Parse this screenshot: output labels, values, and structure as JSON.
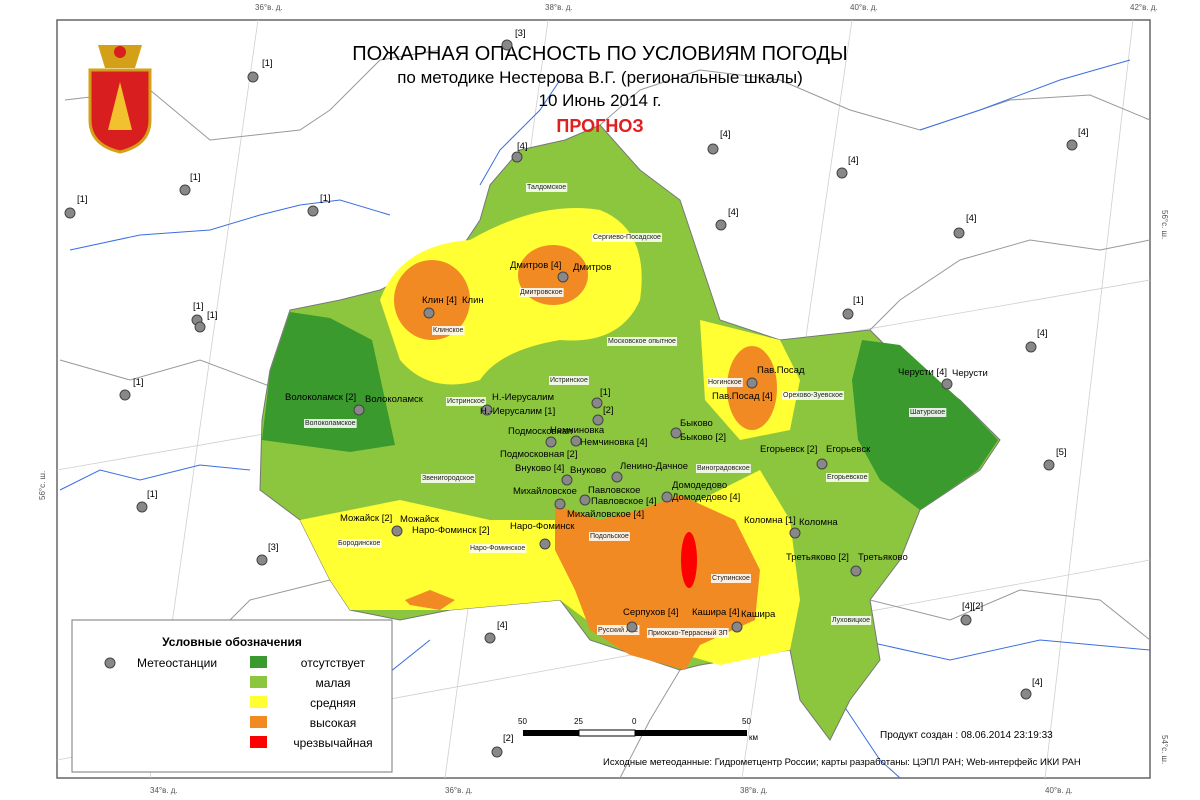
{
  "header": {
    "title": "ПОЖАРНАЯ ОПАСНОСТЬ ПО УСЛОВИЯМ ПОГОДЫ",
    "subtitle": "по методике Нестерова В.Г. (региональные шкалы)",
    "date": "10 Июнь 2014 г.",
    "forecast": "ПРОГНОЗ"
  },
  "legend": {
    "title": "Условные обозначения",
    "stations": "Метеостанции",
    "classes": [
      {
        "label": "отсутствует",
        "color": "#3a9a2e"
      },
      {
        "label": "малая",
        "color": "#8cc63f"
      },
      {
        "label": "средняя",
        "color": "#ffff33"
      },
      {
        "label": "высокая",
        "color": "#f28a24"
      },
      {
        "label": "чрезвычайная",
        "color": "#ff0000"
      }
    ]
  },
  "coords": {
    "top": [
      "36°в. д.",
      "38°в. д.",
      "40°в. д.",
      "42°в. д."
    ],
    "bottom": [
      "34°в. д.",
      "36°в. д.",
      "38°в. д.",
      "40°в. д."
    ],
    "right": [
      "56°с. ш.",
      "54°с. ш."
    ],
    "left": [
      "56°с. ш."
    ]
  },
  "scale": {
    "labels": [
      "50",
      "25",
      "0",
      "50",
      "км"
    ]
  },
  "footer": {
    "created": "Продукт создан : 08.06.2014 23:19:33",
    "sources": "Исходные метеоданные: Гидрометцентр России; карты разработаны: ЦЭПЛ РАН; Web-интерфейс ИКИ РАН"
  },
  "stations": [
    {
      "labels": [
        "[1]"
      ]
    },
    {
      "labels": [
        "[3]"
      ]
    },
    {
      "labels": [
        "[1]"
      ]
    },
    {
      "labels": [
        "[1]"
      ]
    },
    {
      "labels": [
        "[1]"
      ]
    },
    {
      "labels": [
        "[1]"
      ]
    },
    {
      "labels": [
        "[1]"
      ]
    },
    {
      "labels": [
        "[1]"
      ]
    },
    {
      "labels": [
        "[1]"
      ]
    },
    {
      "labels": [
        "[3]"
      ]
    },
    {
      "labels": [
        "[4]"
      ]
    },
    {
      "labels": [
        "[2]"
      ]
    },
    {
      "labels": [
        "[4]"
      ]
    },
    {
      "labels": [
        "[4]"
      ]
    },
    {
      "labels": [
        "[4]"
      ]
    },
    {
      "labels": [
        "[4]"
      ]
    },
    {
      "labels": [
        "[4]"
      ]
    },
    {
      "labels": [
        "[4]"
      ]
    },
    {
      "labels": [
        "[1]"
      ]
    },
    {
      "labels": [
        "[4]"
      ]
    },
    {
      "labels": [
        "[5]"
      ]
    },
    {
      "labels": [
        "[4][2]"
      ]
    },
    {
      "labels": [
        "[4]"
      ]
    },
    {
      "labels": [
        "Клин [4]",
        "Клин"
      ]
    },
    {
      "labels": [
        "Дмитров [4]",
        "Дмитров"
      ]
    },
    {
      "labels": [
        "Волоколамск [2]",
        "Волоколамск"
      ]
    },
    {
      "labels": [
        "Н.-Иерусалим",
        "Н.-Иерусалим [1]"
      ]
    },
    {
      "labels": [
        "[1]"
      ]
    },
    {
      "labels": [
        "[2]"
      ]
    },
    {
      "labels": [
        "Немчиновка",
        "Немчиновка [4]"
      ]
    },
    {
      "labels": [
        "Подмосковная",
        "Подмосковная [2]"
      ]
    },
    {
      "labels": [
        "Внуково [4]",
        "Внуково"
      ]
    },
    {
      "labels": [
        "Ленино-Дачное"
      ]
    },
    {
      "labels": [
        "Быково",
        "Быково [2]"
      ]
    },
    {
      "labels": [
        "Павловское",
        "Павловское [4]"
      ]
    },
    {
      "labels": [
        "Михайловское",
        "Михайловское [4]"
      ]
    },
    {
      "labels": [
        "Домодедово",
        "Домодедово [4]"
      ]
    },
    {
      "labels": [
        "Наро-Фоминск [2]",
        "Наро-Фоминск"
      ]
    },
    {
      "labels": [
        "Можайск [2]",
        "Можайск"
      ]
    },
    {
      "labels": [
        "Коломна [1]",
        "Коломна"
      ]
    },
    {
      "labels": [
        "Третьяково [2]",
        "Третьяково"
      ]
    },
    {
      "labels": [
        "Серпухов [4]"
      ]
    },
    {
      "labels": [
        "Кашира [4]",
        "Кашира"
      ]
    },
    {
      "labels": [
        "Егорьевск [2]",
        "Егорьевск"
      ]
    },
    {
      "labels": [
        "Пав.Посад",
        "Пав.Посад [4]"
      ]
    },
    {
      "labels": [
        "Черусти [4]",
        "Черусти"
      ]
    }
  ],
  "districts": [
    "Талдомское",
    "Сергиево-Посадское",
    "Дмитровское",
    "Клинское",
    "Московское опытное",
    "Истринское",
    "Истринское",
    "Волоколамское",
    "Звенигородское",
    "Бородинское",
    "Наро-Фоминское",
    "Подольское",
    "Ступинское",
    "Русский Лес",
    "Приокско-Террасный ЗП",
    "Луховицкое",
    "Егорьевское",
    "Шатурское",
    "Орехово-Зуевское",
    "Ногинское",
    "Виноградовское"
  ]
}
